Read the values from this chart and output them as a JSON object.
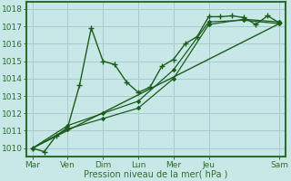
{
  "xlabel": "Pression niveau de la mer( hPa )",
  "background_color": "#c8e8e8",
  "grid_color_minor": "#b8d8d8",
  "grid_color_major": "#99bbbb",
  "spine_color": "#2d6e2d",
  "ylim": [
    1009.5,
    1018.4
  ],
  "xlim": [
    -0.5,
    21.5
  ],
  "xtick_labels": [
    "Mar",
    "Ven",
    "Dim",
    "Lun",
    "Mer",
    "Jeu",
    "Sam"
  ],
  "xtick_positions": [
    0,
    3,
    6,
    9,
    12,
    15,
    21
  ],
  "ytick_values": [
    1010,
    1011,
    1012,
    1013,
    1014,
    1015,
    1016,
    1017,
    1018
  ],
  "series": [
    {
      "x": [
        0,
        1,
        2,
        3,
        4,
        5,
        6,
        7,
        8,
        9,
        10,
        11,
        12,
        13,
        14,
        15,
        16,
        17,
        18,
        19,
        20,
        21
      ],
      "y": [
        1010.0,
        1009.8,
        1010.7,
        1011.2,
        1013.6,
        1016.9,
        1015.0,
        1014.8,
        1013.8,
        1013.2,
        1013.5,
        1014.7,
        1015.1,
        1016.0,
        1016.4,
        1017.55,
        1017.55,
        1017.6,
        1017.5,
        1017.1,
        1017.6,
        1017.2
      ],
      "color": "#1a5c1a",
      "marker": "+",
      "linewidth": 1.0,
      "markersize": 4.5,
      "markeredgewidth": 1.0
    },
    {
      "x": [
        0,
        3,
        6,
        9,
        12,
        15,
        18,
        21
      ],
      "y": [
        1010.0,
        1011.1,
        1011.7,
        1012.3,
        1014.0,
        1017.1,
        1017.4,
        1017.25
      ],
      "color": "#1a5c1a",
      "marker": "D",
      "linewidth": 0.9,
      "markersize": 2.2,
      "markeredgewidth": 0.6
    },
    {
      "x": [
        0,
        3,
        6,
        9,
        12,
        15,
        18,
        21
      ],
      "y": [
        1010.0,
        1011.3,
        1012.0,
        1012.7,
        1014.5,
        1017.25,
        1017.35,
        1017.15
      ],
      "color": "#1a5c1a",
      "marker": "D",
      "linewidth": 0.9,
      "markersize": 2.2,
      "markeredgewidth": 0.6
    },
    {
      "x": [
        0,
        21
      ],
      "y": [
        1010.0,
        1017.15
      ],
      "color": "#1a5c1a",
      "marker": null,
      "linewidth": 1.0,
      "markersize": 0,
      "markeredgewidth": 0
    }
  ]
}
